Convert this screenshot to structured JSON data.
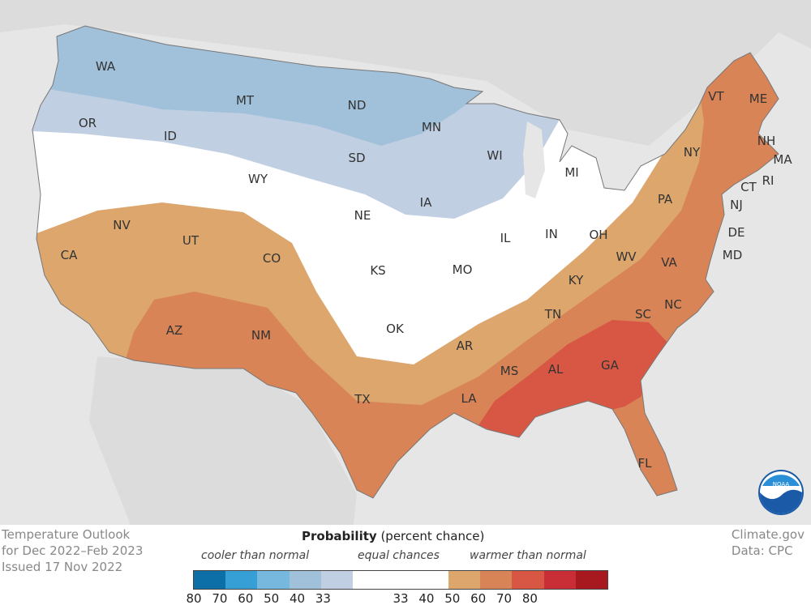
{
  "map": {
    "title_lines": [
      "Temperature Outlook",
      "for Dec 2022–Feb 2023",
      "Issued 17 Nov 2022"
    ],
    "credit_lines": [
      "Climate.gov",
      "Data: CPC"
    ],
    "logo_text": "NOAA",
    "states": [
      {
        "abbr": "WA"
      },
      {
        "abbr": "MT"
      },
      {
        "abbr": "ND"
      },
      {
        "abbr": "MN"
      },
      {
        "abbr": "OR"
      },
      {
        "abbr": "ID"
      },
      {
        "abbr": "SD"
      },
      {
        "abbr": "WI"
      },
      {
        "abbr": "WY"
      },
      {
        "abbr": "MI"
      },
      {
        "abbr": "IA"
      },
      {
        "abbr": "NE"
      },
      {
        "abbr": "NV"
      },
      {
        "abbr": "UT"
      },
      {
        "abbr": "CO"
      },
      {
        "abbr": "CA"
      },
      {
        "abbr": "KS"
      },
      {
        "abbr": "MO"
      },
      {
        "abbr": "IL"
      },
      {
        "abbr": "IN"
      },
      {
        "abbr": "OH"
      },
      {
        "abbr": "OK"
      },
      {
        "abbr": "AZ"
      },
      {
        "abbr": "NM"
      },
      {
        "abbr": "TX"
      },
      {
        "abbr": "AR"
      },
      {
        "abbr": "TN"
      },
      {
        "abbr": "KY"
      },
      {
        "abbr": "WV"
      },
      {
        "abbr": "VA"
      },
      {
        "abbr": "NC"
      },
      {
        "abbr": "SC"
      },
      {
        "abbr": "GA"
      },
      {
        "abbr": "AL"
      },
      {
        "abbr": "MS"
      },
      {
        "abbr": "LA"
      },
      {
        "abbr": "FL"
      },
      {
        "abbr": "PA"
      },
      {
        "abbr": "NY"
      },
      {
        "abbr": "VT"
      },
      {
        "abbr": "ME"
      },
      {
        "abbr": "NH"
      },
      {
        "abbr": "MA"
      },
      {
        "abbr": "RI"
      },
      {
        "abbr": "CT"
      },
      {
        "abbr": "NJ"
      },
      {
        "abbr": "DE"
      },
      {
        "abbr": "MD"
      }
    ]
  },
  "legend": {
    "title_bold": "Probability",
    "title_rest": " (percent chance)",
    "cooler_label": "cooler than normal",
    "equal_label": "equal chances",
    "warmer_label": "warmer than normal",
    "colors": {
      "cool_80": "#0d6fa8",
      "cool_70": "#36a0d6",
      "cool_60": "#77b8de",
      "cool_50": "#a1c1da",
      "cool_40": "#c1cfe2",
      "equal": "#ffffff",
      "warm_40": "#dca66c",
      "warm_50": "#d88457",
      "warm_60": "#d85744",
      "warm_70": "#c92e37",
      "warm_80": "#a7181f"
    },
    "ticks_cool": [
      "80",
      "70",
      "60",
      "50",
      "40",
      "33"
    ],
    "ticks_warm": [
      "33",
      "40",
      "50",
      "60",
      "70",
      "80"
    ]
  }
}
